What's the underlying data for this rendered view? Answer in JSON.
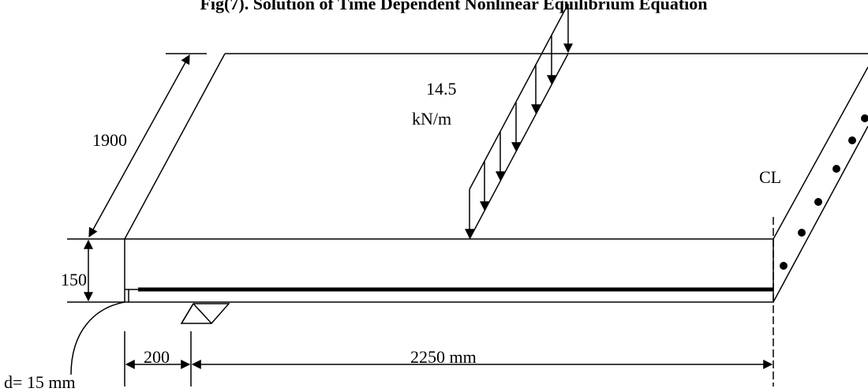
{
  "title": "Fig(7). Solution of Time Dependent Nonlinear Equilibrium Equation",
  "load": {
    "value": "14.5",
    "unit": "kN/m"
  },
  "dimensions": {
    "width": "1900",
    "depth": "150",
    "support": "200",
    "span": "2250 mm",
    "cover": "d= 15 mm"
  },
  "centerline": "CL"
}
